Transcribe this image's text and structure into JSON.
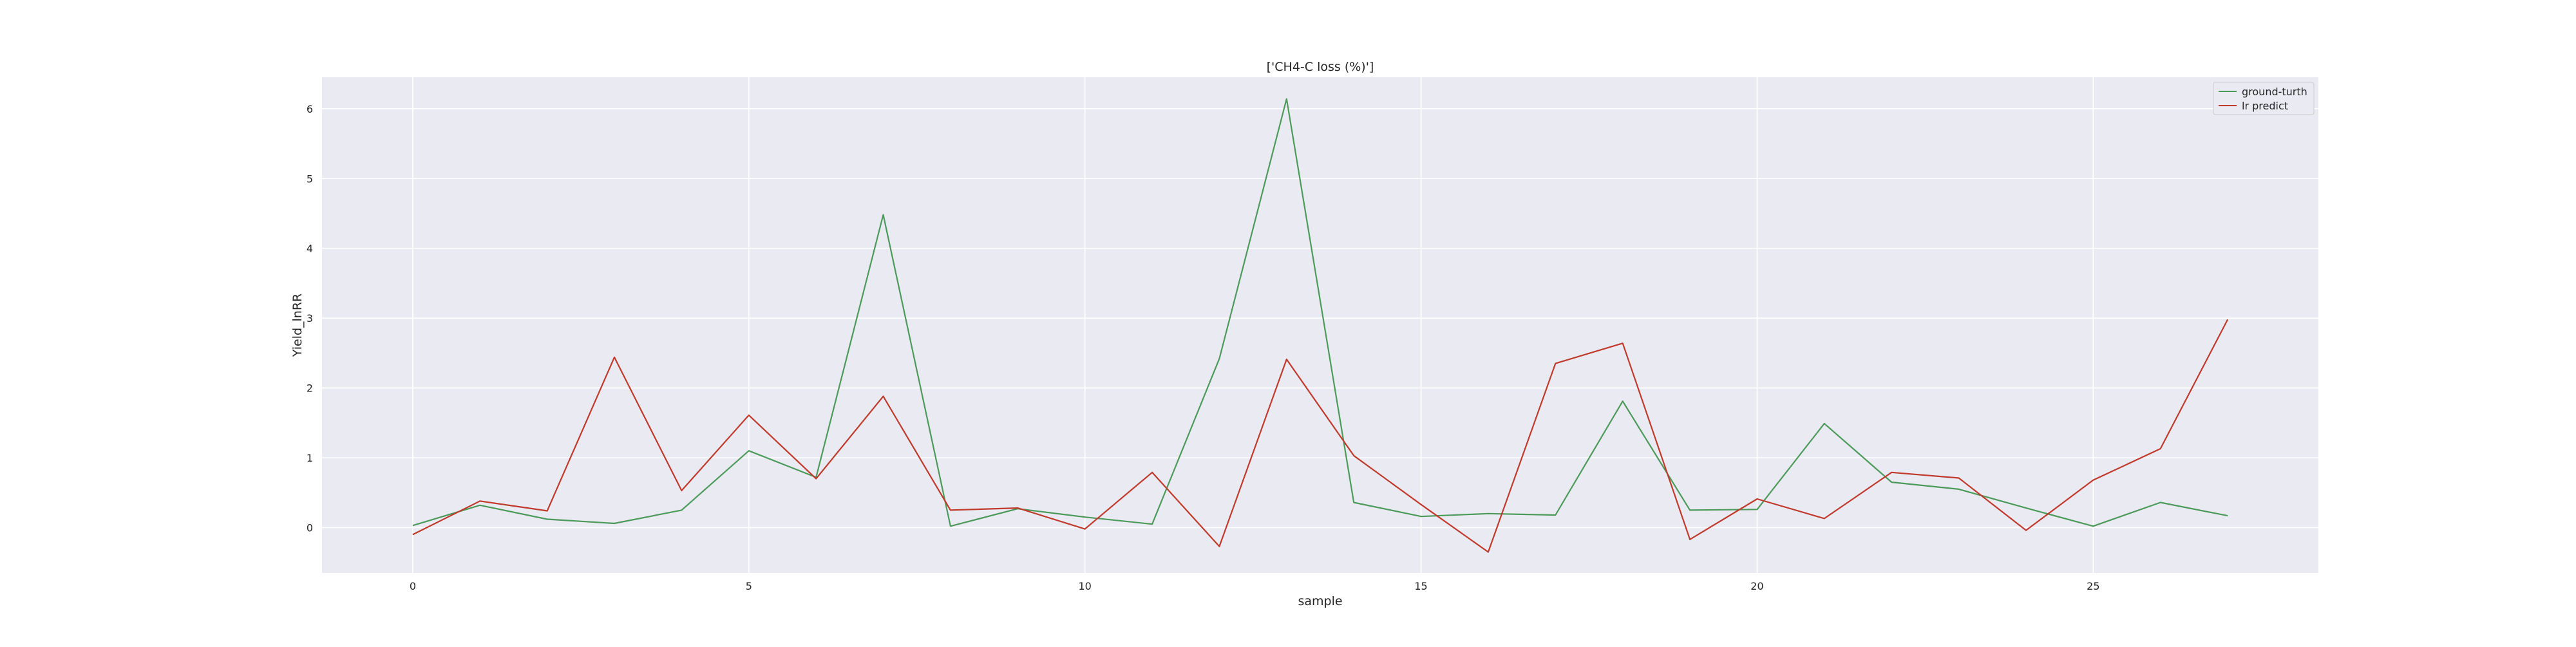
{
  "chart_data": {
    "type": "line",
    "title": "['CH4-C loss (%)']",
    "xlabel": "sample",
    "ylabel": "Yield_lnRR",
    "x": [
      0,
      1,
      2,
      3,
      4,
      5,
      6,
      7,
      8,
      9,
      10,
      11,
      12,
      13,
      14,
      15,
      16,
      17,
      18,
      19,
      20,
      21,
      22,
      23,
      24,
      25,
      26,
      27
    ],
    "xlim": [
      -1.35,
      28.35
    ],
    "ylim": [
      -0.65,
      6.45
    ],
    "xticks": [
      0,
      5,
      10,
      15,
      20,
      25
    ],
    "yticks": [
      0,
      1,
      2,
      3,
      4,
      5,
      6
    ],
    "grid": true,
    "legend_position": "top-right",
    "series": [
      {
        "name": "ground-turth",
        "color": "#4c9a5a",
        "values": [
          0.03,
          0.32,
          0.12,
          0.06,
          0.25,
          1.1,
          0.72,
          4.48,
          0.02,
          0.27,
          0.15,
          0.05,
          2.42,
          6.14,
          0.36,
          0.16,
          0.2,
          0.18,
          1.81,
          0.25,
          0.26,
          1.49,
          0.65,
          0.55,
          0.28,
          0.02,
          0.36,
          0.17
        ]
      },
      {
        "name": "lr predict",
        "color": "#c0392b",
        "values": [
          -0.1,
          0.38,
          0.24,
          2.44,
          0.53,
          1.61,
          0.7,
          1.88,
          0.25,
          0.28,
          -0.02,
          0.79,
          -0.27,
          2.41,
          1.03,
          0.33,
          -0.35,
          2.35,
          2.64,
          -0.17,
          0.41,
          0.13,
          0.79,
          0.71,
          -0.04,
          0.68,
          1.13,
          2.98
        ]
      }
    ]
  }
}
